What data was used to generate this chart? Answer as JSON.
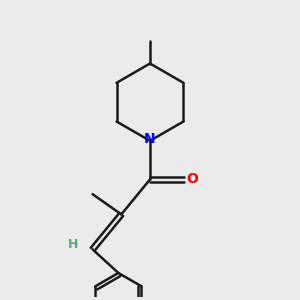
{
  "background_color": "#ebebeb",
  "bond_color": "#1a1a1a",
  "N_color": "#0000ff",
  "O_color": "#ff0000",
  "H_color": "#5aaa78",
  "line_width": 1.8,
  "fig_size": [
    3.0,
    3.0
  ],
  "dpi": 100,
  "xlim": [
    2.0,
    8.0
  ],
  "ylim": [
    1.5,
    9.5
  ]
}
